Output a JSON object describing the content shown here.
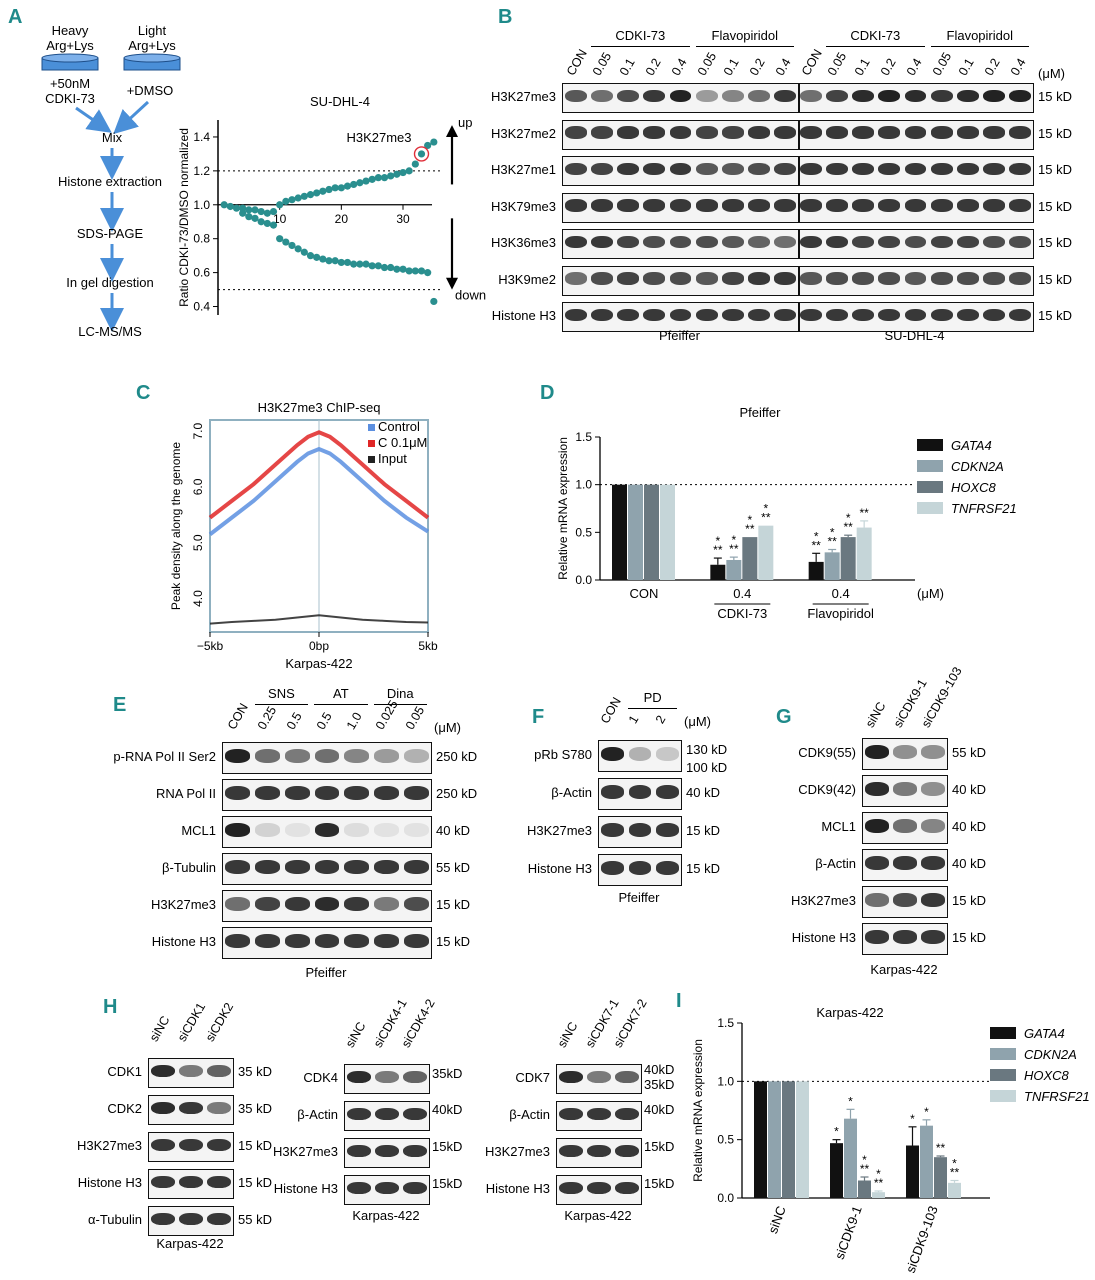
{
  "panels": [
    "A",
    "B",
    "C",
    "D",
    "E",
    "F",
    "G",
    "H",
    "I"
  ],
  "A": {
    "heavy_label": "Heavy Arg+Lys",
    "light_label": "Light Arg+Lys",
    "heavy_treat": "+50nM CDKI-73",
    "light_treat": "+DMSO",
    "steps": [
      "Mix",
      "Histone extraction",
      "SDS-PAGE",
      "In gel digestion",
      "LC-MS/MS"
    ]
  },
  "chart_data": [
    {
      "id": "A-scatter",
      "type": "scatter",
      "title": "SU-DHL-4",
      "ylabel": "Ratio CDKI-73/DMSO normalized",
      "xlabel": "",
      "xticks": [
        "10",
        "20",
        "30"
      ],
      "yticks": [
        "0.4",
        "0.6",
        "0.8",
        "1.0",
        "1.2",
        "1.4"
      ],
      "xlim": [
        0,
        36
      ],
      "ylim": [
        0.35,
        1.5
      ],
      "thresholds": [
        1.2,
        0.5
      ],
      "up_label": "up",
      "down_label": "down",
      "highlight_label": "H3K27me3",
      "highlight_index": 32,
      "x": [
        1,
        2,
        3,
        4,
        5,
        6,
        7,
        8,
        9,
        10,
        11,
        12,
        13,
        14,
        15,
        16,
        17,
        18,
        19,
        20,
        21,
        22,
        23,
        24,
        25,
        26,
        27,
        28,
        29,
        30,
        31,
        32,
        33,
        34,
        35,
        4,
        5,
        6,
        7,
        8,
        9,
        10,
        11,
        12,
        13,
        14,
        15,
        16,
        17,
        18,
        19,
        20,
        21,
        22,
        23,
        24,
        25,
        26,
        27,
        28,
        29,
        30,
        31,
        32,
        33,
        34,
        35
      ],
      "y": [
        1.0,
        0.99,
        0.98,
        0.98,
        0.97,
        0.97,
        0.96,
        0.95,
        0.96,
        1.0,
        1.02,
        1.03,
        1.04,
        1.05,
        1.06,
        1.07,
        1.08,
        1.09,
        1.1,
        1.1,
        1.11,
        1.12,
        1.13,
        1.14,
        1.15,
        1.16,
        1.16,
        1.17,
        1.18,
        1.19,
        1.2,
        1.24,
        1.3,
        1.35,
        1.37,
        0.95,
        0.93,
        0.92,
        0.9,
        0.89,
        0.88,
        0.8,
        0.78,
        0.76,
        0.74,
        0.72,
        0.7,
        0.69,
        0.68,
        0.67,
        0.67,
        0.66,
        0.66,
        0.65,
        0.65,
        0.65,
        0.64,
        0.64,
        0.63,
        0.63,
        0.62,
        0.62,
        0.61,
        0.61,
        0.61,
        0.6,
        0.43
      ]
    },
    {
      "id": "C-line",
      "type": "line",
      "title": "H3K27me3 ChIP-seq",
      "ylabel": "Peak density along the genome",
      "xlabel": "Karpas-422",
      "xticks": [
        "−5kb",
        "0bp",
        "5kb"
      ],
      "yticks": [
        "4.0",
        "5.0",
        "6.0",
        "7.0"
      ],
      "ylim": [
        3.4,
        7.2
      ],
      "x": [
        -5,
        -4,
        -3,
        -2,
        -1,
        -0.5,
        0,
        0.5,
        1,
        2,
        3,
        4,
        5
      ],
      "series": [
        {
          "name": "Control",
          "color": "#5b8fe0",
          "values": [
            5.15,
            5.45,
            5.75,
            6.1,
            6.45,
            6.6,
            6.68,
            6.6,
            6.45,
            6.1,
            5.75,
            5.45,
            5.2
          ]
        },
        {
          "name": "C 0.1μM",
          "color": "#e02626",
          "values": [
            5.45,
            5.75,
            6.05,
            6.4,
            6.75,
            6.9,
            6.98,
            6.9,
            6.75,
            6.4,
            6.05,
            5.75,
            5.45
          ]
        },
        {
          "name": "Input",
          "color": "#222222",
          "values": [
            3.55,
            3.58,
            3.6,
            3.62,
            3.66,
            3.68,
            3.7,
            3.68,
            3.66,
            3.62,
            3.6,
            3.58,
            3.57
          ]
        }
      ]
    },
    {
      "id": "D-bar",
      "type": "bar",
      "title": "Pfeiffer",
      "ylabel": "Relative mRNA expression",
      "yticks": [
        "0.0",
        "0.5",
        "1.0",
        "1.5"
      ],
      "ylim": [
        0,
        1.5
      ],
      "unit": "(μM)",
      "groups": [
        "CON",
        "CDKI-73",
        "Flavopiridol"
      ],
      "group_doses": [
        "",
        "0.4",
        "0.4"
      ],
      "series": [
        {
          "name": "GATA4",
          "color": "#111111",
          "values": [
            1.0,
            0.16,
            0.19
          ],
          "errors": [
            0,
            0.07,
            0.09
          ],
          "stars": [
            "",
            "*\n**",
            "*\n**"
          ]
        },
        {
          "name": "CDKN2A",
          "color": "#8fa3ad",
          "values": [
            1.0,
            0.21,
            0.29
          ],
          "errors": [
            0,
            0.03,
            0.03
          ],
          "stars": [
            "",
            "*\n**",
            "*\n**"
          ]
        },
        {
          "name": "HOXC8",
          "color": "#6a7880",
          "values": [
            1.0,
            0.45,
            0.45
          ],
          "errors": [
            0,
            0.0,
            0.02
          ],
          "stars": [
            "",
            "*\n**",
            "*\n**"
          ]
        },
        {
          "name": "TNFRSF21",
          "color": "#c5d5d8",
          "values": [
            1.0,
            0.57,
            0.55
          ],
          "errors": [
            0,
            0.0,
            0.07
          ],
          "stars": [
            "",
            "*\n**",
            "**"
          ]
        }
      ]
    },
    {
      "id": "I-bar",
      "type": "bar",
      "title": "Karpas-422",
      "ylabel": "Relative mRNA expression",
      "yticks": [
        "0.0",
        "0.5",
        "1.0",
        "1.5"
      ],
      "ylim": [
        0,
        1.5
      ],
      "groups": [
        "siNC",
        "siCDK9-1",
        "siCDK9-103"
      ],
      "series": [
        {
          "name": "GATA4",
          "color": "#111111",
          "values": [
            1.0,
            0.47,
            0.45
          ],
          "errors": [
            0,
            0.03,
            0.16
          ],
          "stars": [
            "",
            "*",
            "*"
          ]
        },
        {
          "name": "CDKN2A",
          "color": "#8fa3ad",
          "values": [
            1.0,
            0.68,
            0.62
          ],
          "errors": [
            0,
            0.08,
            0.05
          ],
          "stars": [
            "",
            "*",
            "*"
          ]
        },
        {
          "name": "HOXC8",
          "color": "#6a7880",
          "values": [
            1.0,
            0.15,
            0.35
          ],
          "errors": [
            0,
            0.03,
            0.01
          ],
          "stars": [
            "",
            "*\n**",
            "**"
          ]
        },
        {
          "name": "TNFRSF21",
          "color": "#c5d5d8",
          "values": [
            1.0,
            0.05,
            0.13
          ],
          "errors": [
            0,
            0.01,
            0.02
          ],
          "stars": [
            "",
            "*\n**",
            "*\n**"
          ]
        }
      ]
    }
  ],
  "B": {
    "treat1": "CDKI-73",
    "treat2": "Flavopiridol",
    "lane_labels": [
      "CON",
      "0.05",
      "0.1",
      "0.2",
      "0.4",
      "0.05",
      "0.1",
      "0.2",
      "0.4",
      "CON",
      "0.05",
      "0.1",
      "0.2",
      "0.4",
      "0.05",
      "0.1",
      "0.2",
      "0.4"
    ],
    "unit": "(μM)",
    "rows": [
      "H3K27me3",
      "H3K27me2",
      "H3K27me1",
      "H3K79me3",
      "H3K36me3",
      "H3K9me2",
      "Histone H3"
    ],
    "kd": [
      "15 kD",
      "15 kD",
      "15 kD",
      "15 kD",
      "15 kD",
      "15 kD",
      "15 kD"
    ],
    "cell1": "Pfeiffer",
    "cell2": "SU-DHL-4"
  },
  "E": {
    "lanes": [
      "CON",
      "0.25",
      "0.5",
      "0.5",
      "1.0",
      "0.025",
      "0.05"
    ],
    "groups": [
      "SNS",
      "AT",
      "Dina"
    ],
    "unit": "(μM)",
    "rows": [
      "p-RNA Pol II Ser2",
      "RNA Pol II",
      "MCL1",
      "β-Tubulin",
      "H3K27me3",
      "Histone H3"
    ],
    "kd": [
      "250 kD",
      "250 kD",
      "40 kD",
      "55 kD",
      "15 kD",
      "15 kD"
    ],
    "cell": "Pfeiffer"
  },
  "F": {
    "lanes": [
      "CON",
      "1",
      "2"
    ],
    "group": "PD",
    "unit": "(μM)",
    "rows": [
      "pRb S780",
      "β-Actin",
      "H3K27me3",
      "Histone H3"
    ],
    "kd": [
      "130 kD",
      "100 kD",
      "40 kD",
      "15 kD",
      "15 kD"
    ],
    "cell": "Pfeiffer"
  },
  "G": {
    "lanes": [
      "siNC",
      "siCDK9-1",
      "siCDK9-103"
    ],
    "rows": [
      "CDK9(55)",
      "CDK9(42)",
      "MCL1",
      "β-Actin",
      "H3K27me3",
      "Histone H3"
    ],
    "kd": [
      "55 kD",
      "40 kD",
      "40 kD",
      "40 kD",
      "15 kD",
      "15 kD"
    ],
    "cell": "Karpas-422"
  },
  "H": {
    "blot1": {
      "lanes": [
        "siNC",
        "siCDK1",
        "siCDK2"
      ],
      "rows": [
        "CDK1",
        "CDK2",
        "H3K27me3",
        "Histone H3",
        "α-Tubulin"
      ],
      "kd": [
        "35 kD",
        "35 kD",
        "15 kD",
        "15 kD",
        "55 kD"
      ],
      "cell": "Karpas-422"
    },
    "blot2": {
      "lanes": [
        "siNC",
        "siCDK4-1",
        "siCDK4-2"
      ],
      "rows": [
        "CDK4",
        "β-Actin",
        "H3K27me3",
        "Histone H3"
      ],
      "kd": [
        "35kD",
        "40kD",
        "15kD",
        "15kD"
      ],
      "cell": "Karpas-422"
    },
    "blot3": {
      "lanes": [
        "siNC",
        "siCDK7-1",
        "siCDK7-2"
      ],
      "rows": [
        "CDK7",
        "β-Actin",
        "H3K27me3",
        "Histone H3"
      ],
      "kd": [
        "40kD",
        "35kD",
        "40kD",
        "15kD",
        "15kD"
      ],
      "cell": "Karpas-422"
    }
  }
}
